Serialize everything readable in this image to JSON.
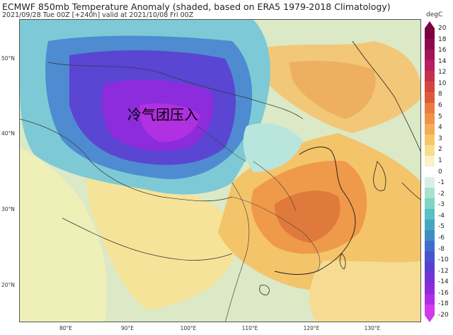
{
  "header": {
    "title": "ECMWF 850mb Temperature Anomaly (shaded, based on ERA5 1979-2018 Climatology)",
    "subtitle": "2021/09/28 Tue 00Z [+240h] valid at 2021/10/08 Fri 00Z"
  },
  "map": {
    "annotation": "冷气团压入",
    "lat_labels": [
      "50°N",
      "40°N",
      "30°N",
      "20°N"
    ],
    "lon_labels": [
      "80°E",
      "90°E",
      "100°E",
      "110°E",
      "120°E",
      "130°E"
    ]
  },
  "colorbar": {
    "unit": "degC",
    "ticks": [
      "20",
      "18",
      "16",
      "14",
      "12",
      "10",
      "8",
      "6",
      "5",
      "4",
      "3",
      "2",
      "1",
      "0",
      "-1",
      "-2",
      "-3",
      "-4",
      "-5",
      "-6",
      "-8",
      "-10",
      "-12",
      "-14",
      "-16",
      "-18",
      "-20"
    ],
    "colors": [
      "#7a0040",
      "#8e0a4e",
      "#a3145a",
      "#b71f5e",
      "#c7304c",
      "#d4453f",
      "#e0583a",
      "#ea7a3e",
      "#f09348",
      "#f3ad55",
      "#f6c766",
      "#f8de8a",
      "#fbf1c8",
      "#ffffff",
      "#d9f0e8",
      "#a8e3d0",
      "#7fd5c4",
      "#57c1c0",
      "#44a7c0",
      "#3e8cc4",
      "#3f6fca",
      "#4753cf",
      "#5a3fd3",
      "#7433d8",
      "#8e2bdc",
      "#b02ee4",
      "#d13bec"
    ]
  }
}
